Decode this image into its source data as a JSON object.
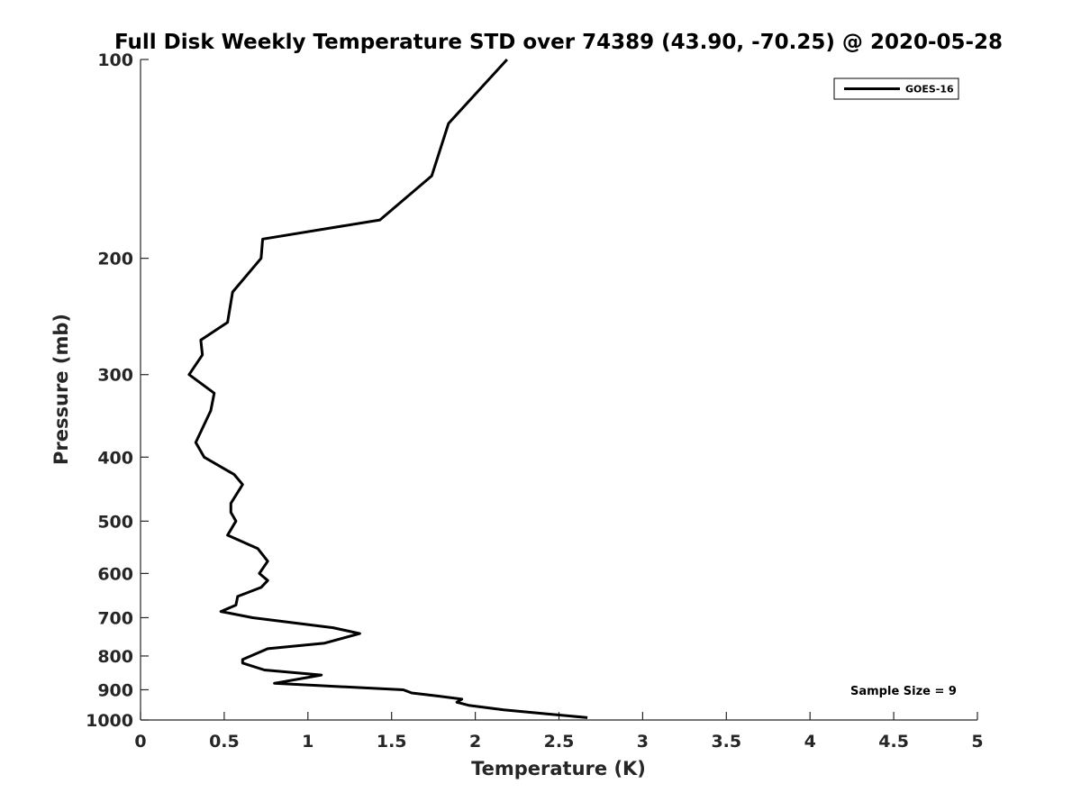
{
  "chart_data": {
    "type": "line",
    "title": "Full Disk Weekly Temperature STD over 74389 (43.90, -70.25) @ 2020-05-28",
    "xlabel": "Temperature (K)",
    "ylabel": "Pressure (mb)",
    "xlim": [
      0,
      5
    ],
    "ylim": [
      100,
      1000
    ],
    "y_scale": "log",
    "y_reversed": true,
    "x_ticks": [
      0,
      0.5,
      1,
      1.5,
      2,
      2.5,
      3,
      3.5,
      4,
      4.5,
      5
    ],
    "x_tick_labels": [
      "0",
      "0.5",
      "1",
      "1.5",
      "2",
      "2.5",
      "3",
      "3.5",
      "4",
      "4.5",
      "5"
    ],
    "y_ticks": [
      100,
      200,
      300,
      400,
      500,
      600,
      700,
      800,
      900,
      1000
    ],
    "y_tick_labels": [
      "100",
      "200",
      "300",
      "400",
      "500",
      "600",
      "700",
      "800",
      "900",
      "1000"
    ],
    "grid": false,
    "legend_position": "top-right",
    "series": [
      {
        "name": "GOES-16",
        "color": "#000000",
        "points": [
          [
            2.19,
            100
          ],
          [
            1.84,
            125
          ],
          [
            1.74,
            150
          ],
          [
            1.43,
            175
          ],
          [
            0.73,
            187
          ],
          [
            0.72,
            200
          ],
          [
            0.55,
            225
          ],
          [
            0.52,
            250
          ],
          [
            0.36,
            266
          ],
          [
            0.37,
            280
          ],
          [
            0.29,
            300
          ],
          [
            0.44,
            320
          ],
          [
            0.42,
            340
          ],
          [
            0.33,
            380
          ],
          [
            0.38,
            400
          ],
          [
            0.56,
            425
          ],
          [
            0.61,
            440
          ],
          [
            0.54,
            470
          ],
          [
            0.54,
            485
          ],
          [
            0.57,
            500
          ],
          [
            0.52,
            525
          ],
          [
            0.7,
            550
          ],
          [
            0.76,
            575
          ],
          [
            0.71,
            600
          ],
          [
            0.76,
            615
          ],
          [
            0.72,
            630
          ],
          [
            0.58,
            650
          ],
          [
            0.57,
            670
          ],
          [
            0.48,
            685
          ],
          [
            0.67,
            700
          ],
          [
            1.15,
            725
          ],
          [
            1.31,
            740
          ],
          [
            1.1,
            765
          ],
          [
            0.76,
            780
          ],
          [
            0.61,
            810
          ],
          [
            0.61,
            820
          ],
          [
            0.74,
            840
          ],
          [
            1.08,
            855
          ],
          [
            0.8,
            880
          ],
          [
            1.57,
            900
          ],
          [
            1.62,
            910
          ],
          [
            1.78,
            920
          ],
          [
            1.92,
            930
          ],
          [
            1.89,
            940
          ],
          [
            1.96,
            950
          ],
          [
            2.17,
            965
          ],
          [
            2.45,
            980
          ],
          [
            2.67,
            992
          ]
        ]
      }
    ],
    "annotations": [
      {
        "text": "Sample Size = 9"
      }
    ]
  }
}
